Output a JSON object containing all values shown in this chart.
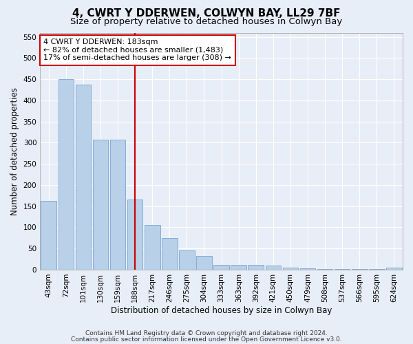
{
  "title": "4, CWRT Y DDERWEN, COLWYN BAY, LL29 7BF",
  "subtitle": "Size of property relative to detached houses in Colwyn Bay",
  "xlabel": "Distribution of detached houses by size in Colwyn Bay",
  "ylabel": "Number of detached properties",
  "categories": [
    "43sqm",
    "72sqm",
    "101sqm",
    "130sqm",
    "159sqm",
    "188sqm",
    "217sqm",
    "246sqm",
    "275sqm",
    "304sqm",
    "333sqm",
    "363sqm",
    "392sqm",
    "421sqm",
    "450sqm",
    "479sqm",
    "508sqm",
    "537sqm",
    "566sqm",
    "595sqm",
    "624sqm"
  ],
  "values": [
    163,
    450,
    437,
    307,
    307,
    165,
    106,
    74,
    46,
    32,
    11,
    11,
    11,
    9,
    5,
    3,
    2,
    1,
    1,
    1,
    5
  ],
  "bar_color": "#b8d0e8",
  "bar_edge_color": "#6699cc",
  "ylim": [
    0,
    560
  ],
  "yticks": [
    0,
    50,
    100,
    150,
    200,
    250,
    300,
    350,
    400,
    450,
    500,
    550
  ],
  "vline_x_index": 5,
  "vline_color": "#cc0000",
  "annotation_text": "4 CWRT Y DDERWEN: 183sqm\n← 82% of detached houses are smaller (1,483)\n17% of semi-detached houses are larger (308) →",
  "annotation_box_color": "#ffffff",
  "annotation_box_edge": "#cc0000",
  "footer1": "Contains HM Land Registry data © Crown copyright and database right 2024.",
  "footer2": "Contains public sector information licensed under the Open Government Licence v3.0.",
  "bg_color": "#e8eef8",
  "plot_bg_color": "#e8eef8",
  "grid_color": "#ffffff",
  "title_fontsize": 11,
  "subtitle_fontsize": 9.5,
  "axis_label_fontsize": 8.5,
  "tick_fontsize": 7.5,
  "footer_fontsize": 6.5,
  "annotation_fontsize": 8
}
